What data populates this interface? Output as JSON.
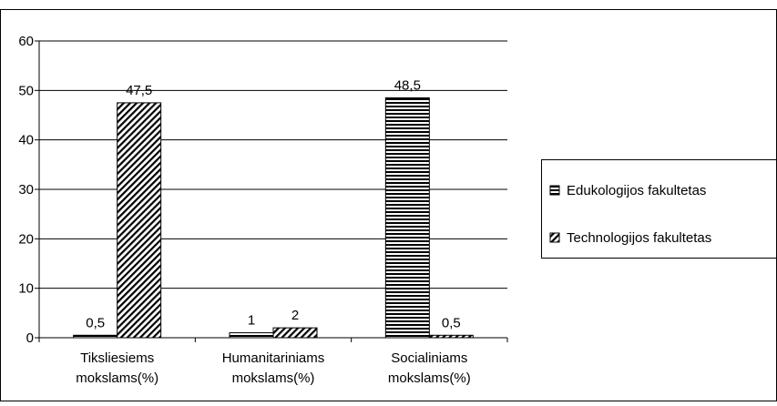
{
  "chart_data": {
    "type": "bar",
    "title": "",
    "xlabel": "",
    "ylabel": "",
    "ylim": [
      0,
      60
    ],
    "yticks": [
      0,
      10,
      20,
      30,
      40,
      50,
      60
    ],
    "grid": true,
    "legend_position": "right",
    "categories": [
      [
        "Tiksliesiems",
        "mokslams(%)"
      ],
      [
        "Humanitariniams",
        "mokslams(%)"
      ],
      [
        "Socialiniams",
        "mokslams(%)"
      ]
    ],
    "series": [
      {
        "name": "Edukologijos fakultetas",
        "values": [
          0.5,
          1,
          48.5
        ],
        "labels": [
          "0,5",
          "1",
          "48,5"
        ],
        "pattern": "horizontal-stripes"
      },
      {
        "name": "Technologijos fakultetas",
        "values": [
          47.5,
          2,
          0.5
        ],
        "labels": [
          "47,5",
          "2",
          "0,5"
        ],
        "pattern": "diagonal-stripes"
      }
    ]
  }
}
